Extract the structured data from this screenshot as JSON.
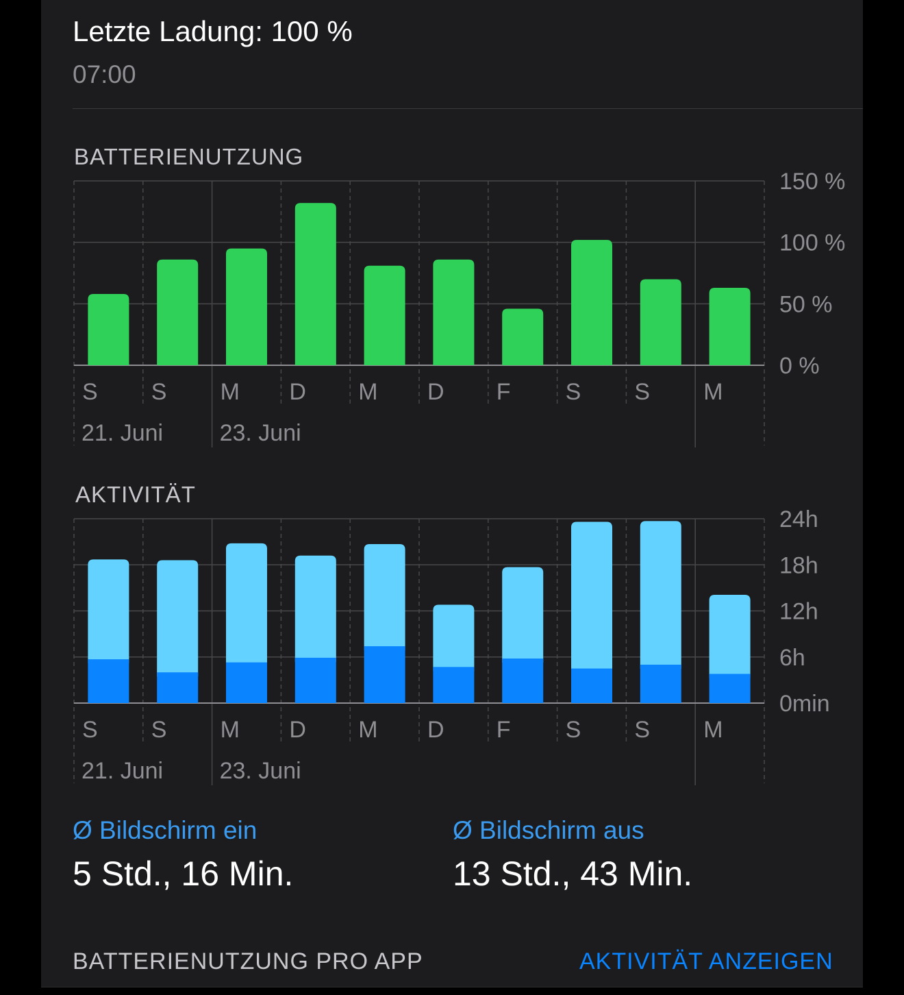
{
  "last_charge": {
    "title": "Letzte Ladung: 100 %",
    "time": "07:00"
  },
  "battery_section": {
    "title": "BATTERIENUTZUNG"
  },
  "activity_section": {
    "title": "AKTIVITÄT"
  },
  "days": [
    "S",
    "S",
    "M",
    "D",
    "M",
    "D",
    "F",
    "S",
    "S",
    "M"
  ],
  "dates": [
    "21. Juni",
    "23. Juni"
  ],
  "screen_on": {
    "label": "Ø Bildschirm ein",
    "value": "5 Std., 16 Min."
  },
  "screen_off": {
    "label": "Ø Bildschirm aus",
    "value": "13 Std., 43 Min."
  },
  "footer": {
    "per_app": "BATTERIENUTZUNG PRO APP",
    "show_activity": "AKTIVITÄT ANZEIGEN"
  },
  "colors": {
    "battery_bar": "#30d158",
    "screen_on_bar": "#0a84ff",
    "screen_off_bar": "#64d2ff",
    "grid": "#48484a",
    "axis_text": "#8e8e93"
  },
  "chart_data": [
    {
      "type": "bar",
      "categories": [
        "S",
        "S",
        "M",
        "D",
        "M",
        "D",
        "F",
        "S",
        "S",
        "M"
      ],
      "values": [
        58,
        86,
        95,
        132,
        81,
        86,
        46,
        102,
        70,
        63
      ],
      "yticks": [
        "150 %",
        "100 %",
        "50 %",
        "0 %"
      ],
      "ylim": [
        0,
        150
      ],
      "unit": "%",
      "grid": true
    },
    {
      "type": "bar",
      "stacked": true,
      "categories": [
        "S",
        "S",
        "M",
        "D",
        "M",
        "D",
        "F",
        "S",
        "S",
        "M"
      ],
      "series": [
        {
          "values": [
            5.7,
            4.0,
            5.3,
            5.9,
            7.4,
            4.7,
            5.8,
            4.5,
            5.0,
            3.8
          ]
        },
        {
          "values": [
            13.0,
            14.6,
            15.5,
            13.3,
            13.3,
            8.1,
            11.9,
            19.1,
            18.7,
            10.3
          ]
        }
      ],
      "yticks": [
        "24h",
        "18h",
        "12h",
        "6h",
        "0min"
      ],
      "ylim": [
        0,
        24
      ],
      "unit": "h",
      "grid": true
    }
  ]
}
